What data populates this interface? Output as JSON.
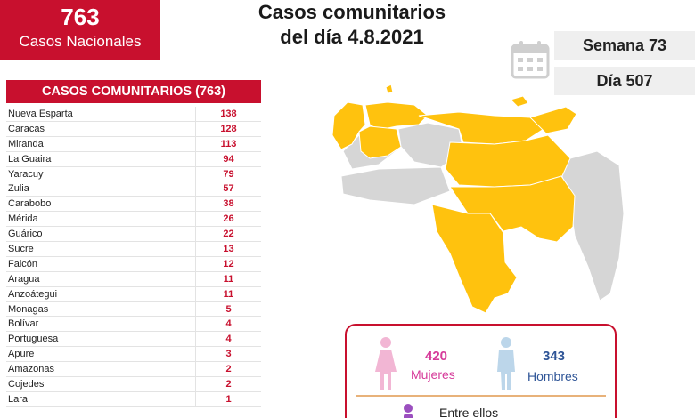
{
  "national": {
    "count": "763",
    "label": "Casos Nacionales"
  },
  "title": {
    "line1": "Casos comunitarios",
    "line2": "del día 4.8.2021"
  },
  "week": "Semana 73",
  "day": "Día 507",
  "table": {
    "header": "CASOS COMUNITARIOS (763)",
    "rows": [
      {
        "state": "Nueva Esparta",
        "value": "138"
      },
      {
        "state": "Caracas",
        "value": "128"
      },
      {
        "state": "Miranda",
        "value": "113"
      },
      {
        "state": "La Guaira",
        "value": "94"
      },
      {
        "state": "Yaracuy",
        "value": "79"
      },
      {
        "state": "Zulia",
        "value": "57"
      },
      {
        "state": "Carabobo",
        "value": "38"
      },
      {
        "state": "Mérida",
        "value": "26"
      },
      {
        "state": "Guárico",
        "value": "22"
      },
      {
        "state": "Sucre",
        "value": "13"
      },
      {
        "state": "Falcón",
        "value": "12"
      },
      {
        "state": "Aragua",
        "value": "11"
      },
      {
        "state": "Anzoátegui",
        "value": "11"
      },
      {
        "state": "Monagas",
        "value": "5"
      },
      {
        "state": "Bolívar",
        "value": "4"
      },
      {
        "state": "Portuguesa",
        "value": "4"
      },
      {
        "state": "Apure",
        "value": "3"
      },
      {
        "state": "Amazonas",
        "value": "2"
      },
      {
        "state": "Cojedes",
        "value": "2"
      },
      {
        "state": "Lara",
        "value": "1"
      }
    ]
  },
  "gender": {
    "female_count": "420",
    "female_label": "Mujeres",
    "male_count": "343",
    "male_label": "Hombres",
    "between": "Entre ellos"
  },
  "colors": {
    "accent": "#c8102e",
    "affected": "#ffc20e",
    "unaffected": "#d6d6d6",
    "female": "#d63b9a",
    "male": "#2f5597"
  },
  "icons": [
    "calendar-icon",
    "female-figure-icon",
    "male-figure-icon",
    "child-figure-icon"
  ]
}
